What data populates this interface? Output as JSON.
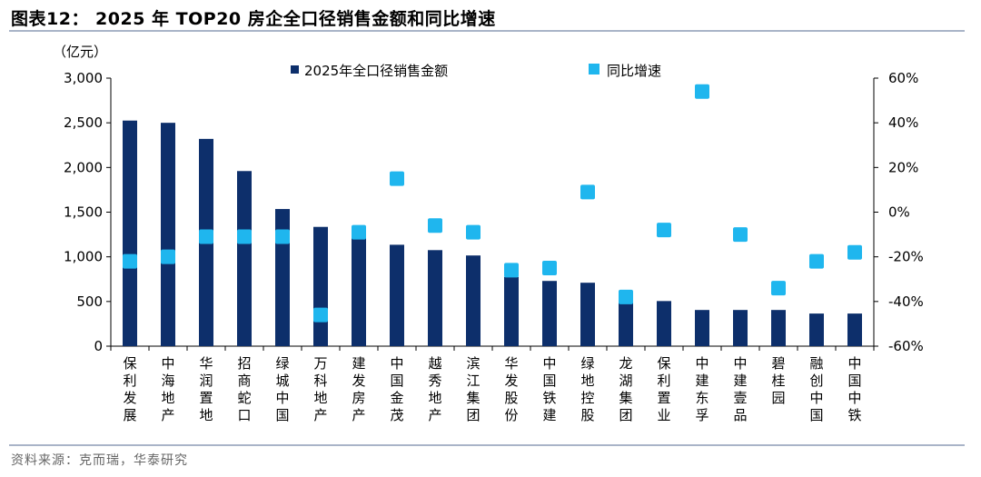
{
  "header": {
    "title": "图表12： 2025 年 TOP20 房企全口径销售金额和同比增速"
  },
  "footer": {
    "source": "资料来源：克而瑞，华泰研究"
  },
  "chart_data": {
    "type": "bar",
    "title": "2025 年 TOP20 房企全口径销售金额和同比增速",
    "unit_label": "（亿元）",
    "categories": [
      "保利发展",
      "中海地产",
      "华润置地",
      "招商蛇口",
      "绿城中国",
      "万科地产",
      "建发房产",
      "中国金茂",
      "越秀地产",
      "滨江集团",
      "华发股份",
      "中国铁建",
      "绿地控股",
      "龙湖集团",
      "保利置业",
      "中建东孚",
      "中建壹品",
      "碧桂园",
      "融创中国",
      "中国中铁"
    ],
    "series": [
      {
        "name": "2025年全口径销售金额",
        "type": "bar",
        "axis": "left",
        "color": "#0d2f6b",
        "values": [
          2525,
          2500,
          2320,
          1960,
          1535,
          1335,
          1240,
          1135,
          1075,
          1015,
          775,
          730,
          710,
          500,
          505,
          405,
          405,
          405,
          365,
          365
        ]
      },
      {
        "name": "同比增速",
        "type": "scatter",
        "axis": "right",
        "color": "#1fb6ee",
        "values": [
          -22,
          -20,
          -11,
          -11,
          -11,
          -46,
          -9,
          15,
          -6,
          -9,
          -26,
          -25,
          9,
          -38,
          -8,
          54,
          -10,
          -34,
          -22,
          -18
        ]
      }
    ],
    "y_left": {
      "min": 0,
      "max": 3000,
      "ticks": [
        0,
        500,
        1000,
        1500,
        2000,
        2500,
        3000
      ],
      "tick_labels": [
        "0",
        "500",
        "1,000",
        "1,500",
        "2,000",
        "2,500",
        "3,000"
      ]
    },
    "y_right": {
      "min": -60,
      "max": 60,
      "ticks": [
        -60,
        -40,
        -20,
        0,
        20,
        40,
        60
      ],
      "tick_labels": [
        "-60%",
        "-40%",
        "-20%",
        "0%",
        "20%",
        "40%",
        "60%"
      ]
    },
    "legend": [
      "2025年全口径销售金额",
      "同比增速"
    ],
    "legend_position": "top",
    "grid": false
  }
}
